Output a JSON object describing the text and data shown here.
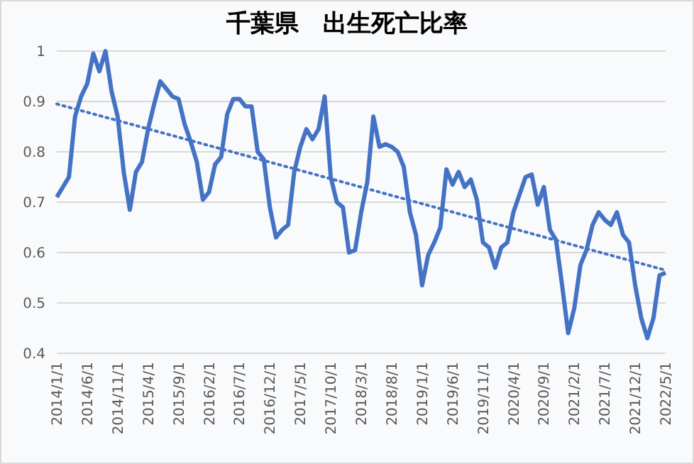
{
  "chart_data": {
    "type": "line",
    "title": "千葉県　出生死亡比率",
    "categories": [
      "2014/1/1",
      null,
      null,
      null,
      null,
      "2014/6/1",
      null,
      null,
      null,
      null,
      "2014/11/1",
      null,
      null,
      null,
      null,
      "2015/4/1",
      null,
      null,
      null,
      null,
      "2015/9/1",
      null,
      null,
      null,
      null,
      "2016/2/1",
      null,
      null,
      null,
      null,
      "2016/7/1",
      null,
      null,
      null,
      null,
      "2016/12/1",
      null,
      null,
      null,
      null,
      "2017/5/1",
      null,
      null,
      null,
      null,
      "2017/10/1",
      null,
      null,
      null,
      null,
      "2018/3/1",
      null,
      null,
      null,
      null,
      "2018/8/1",
      null,
      null,
      null,
      null,
      "2019/1/1",
      null,
      null,
      null,
      null,
      "2019/6/1",
      null,
      null,
      null,
      null,
      "2019/11/1",
      null,
      null,
      null,
      null,
      "2020/4/1",
      null,
      null,
      null,
      null,
      "2020/9/1",
      null,
      null,
      null,
      null,
      "2021/2/1",
      null,
      null,
      null,
      null,
      "2021/7/1",
      null,
      null,
      null,
      null,
      "2021/12/1",
      null,
      null,
      null,
      null,
      "2022/5/1"
    ],
    "series": [
      {
        "color": "#4472c4",
        "line_style": "solid",
        "values": [
          0.71,
          0.73,
          0.75,
          0.87,
          0.91,
          0.935,
          0.995,
          0.96,
          1.0,
          0.92,
          0.87,
          0.76,
          0.685,
          0.76,
          0.78,
          0.845,
          0.895,
          0.94,
          0.925,
          0.91,
          0.905,
          0.855,
          0.82,
          0.78,
          0.705,
          0.72,
          0.775,
          0.79,
          0.875,
          0.905,
          0.905,
          0.89,
          0.89,
          0.8,
          0.785,
          0.69,
          0.63,
          0.645,
          0.655,
          0.76,
          0.81,
          0.845,
          0.825,
          0.845,
          0.91,
          0.75,
          0.7,
          0.69,
          0.6,
          0.605,
          0.68,
          0.74,
          0.87,
          0.81,
          0.815,
          0.81,
          0.8,
          0.77,
          0.68,
          0.635,
          0.535,
          0.595,
          0.62,
          0.65,
          0.765,
          0.735,
          0.76,
          0.73,
          0.745,
          0.705,
          0.62,
          0.61,
          0.57,
          0.61,
          0.62,
          0.68,
          0.715,
          0.75,
          0.755,
          0.695,
          0.73,
          0.645,
          0.625,
          0.535,
          0.44,
          0.49,
          0.575,
          0.605,
          0.655,
          0.68,
          0.665,
          0.655,
          0.68,
          0.635,
          0.62,
          0.535,
          0.47,
          0.43,
          0.47,
          0.555,
          0.56
        ]
      },
      {
        "type": "line",
        "color": "#4472c4",
        "line_style": "dotted",
        "x": [
          "2014/1/1",
          "2022/5/1"
        ],
        "values": [
          0.895,
          0.565
        ]
      }
    ],
    "ylim": [
      0.4,
      1
    ],
    "yticks": [
      0.4,
      0.5,
      0.6,
      0.7,
      0.8,
      0.9,
      1
    ],
    "grid": "y",
    "marker": "none"
  }
}
